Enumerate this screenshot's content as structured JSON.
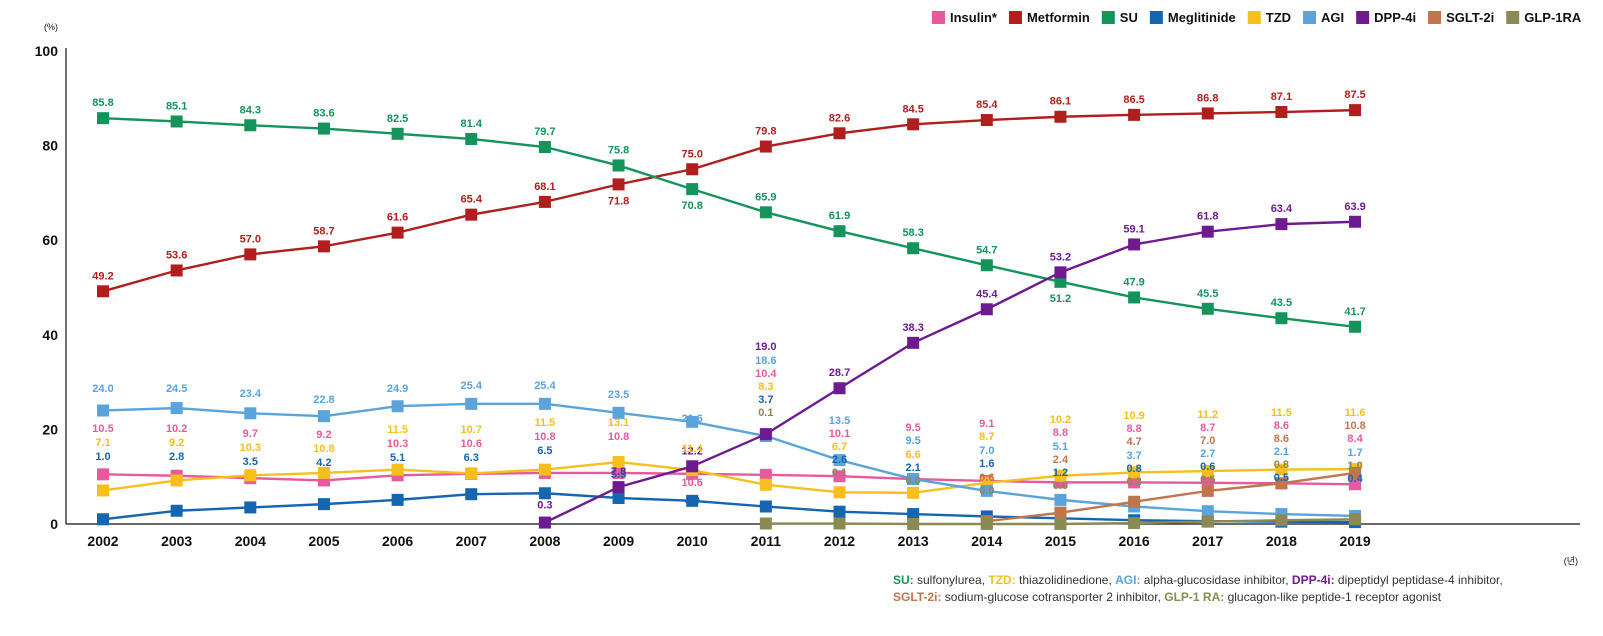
{
  "chart_data": {
    "type": "line",
    "title": "",
    "ylabel": "(%)",
    "xlabel": "(년)",
    "ylim": [
      0,
      100
    ],
    "yticks": [
      "0",
      "20",
      "40",
      "60",
      "80",
      "100"
    ],
    "categories": [
      "2002",
      "2003",
      "2004",
      "2005",
      "2006",
      "2007",
      "2008",
      "2009",
      "2010",
      "2011",
      "2012",
      "2013",
      "2014",
      "2015",
      "2016",
      "2017",
      "2018",
      "2019"
    ],
    "x": [
      2002,
      2003,
      2004,
      2005,
      2006,
      2007,
      2008,
      2009,
      2010,
      2011,
      2012,
      2013,
      2014,
      2015,
      2016,
      2017,
      2018,
      2019
    ],
    "legend_position": "top-right",
    "series": [
      {
        "name": "Insulin*",
        "color": "#e85a9e",
        "values": [
          10.5,
          10.2,
          9.7,
          9.2,
          10.3,
          10.6,
          10.8,
          10.8,
          10.6,
          10.4,
          10.1,
          9.5,
          9.1,
          8.8,
          8.8,
          8.7,
          8.6,
          8.4
        ],
        "labels": [
          "10.5",
          "10.2",
          "9.7",
          "9.2",
          "10.3",
          "10.6",
          "10.8",
          "10.8",
          "10.6",
          "10.4",
          "10.1",
          "9.5",
          "9.1",
          "8.8",
          "8.8",
          "8.7",
          "8.6",
          "8.4"
        ]
      },
      {
        "name": "Metformin",
        "color": "#b01e1e",
        "values": [
          49.2,
          53.6,
          57.0,
          58.7,
          61.6,
          65.4,
          68.1,
          71.8,
          75.0,
          79.8,
          82.6,
          84.5,
          85.4,
          86.1,
          86.5,
          86.8,
          87.1,
          87.5
        ],
        "labels": [
          "49.2",
          "53.6",
          "57.0",
          "58.7",
          "61.6",
          "65.4",
          "68.1",
          "71.8",
          "75.0",
          "79.8",
          "82.6",
          "84.5",
          "85.4",
          "86.1",
          "86.5",
          "86.8",
          "87.1",
          "87.5"
        ]
      },
      {
        "name": "SU",
        "color": "#14935a",
        "values": [
          85.8,
          85.1,
          84.3,
          83.6,
          82.5,
          81.4,
          79.7,
          75.8,
          70.8,
          65.9,
          61.9,
          58.3,
          54.7,
          51.2,
          47.9,
          45.5,
          43.5,
          41.7
        ],
        "labels": [
          "85.8",
          "85.1",
          "84.3",
          "83.6",
          "82.5",
          "81.4",
          "79.7",
          "75.8",
          "70.8",
          "65.9",
          "61.9",
          "58.3",
          "54.7",
          "51.2",
          "47.9",
          "45.5",
          "43.5",
          "41.7"
        ]
      },
      {
        "name": "Meglitinide",
        "color": "#1565b0",
        "values": [
          1.0,
          2.8,
          3.5,
          4.2,
          5.1,
          6.3,
          6.5,
          5.5,
          4.9,
          3.7,
          2.6,
          2.1,
          1.6,
          1.2,
          0.8,
          0.6,
          0.5,
          0.4
        ],
        "labels": [
          "1.0",
          "2.8",
          "3.5",
          "4.2",
          "5.1",
          "6.3",
          "6.5",
          "5.5",
          "4.9",
          "3.7",
          "2.6",
          "2.1",
          "1.6",
          "1.2",
          "0.8",
          "0.6",
          "0.5",
          "0.4"
        ]
      },
      {
        "name": "TZD",
        "color": "#f6bf1c",
        "values": [
          7.1,
          9.2,
          10.3,
          10.8,
          11.5,
          10.7,
          11.5,
          13.1,
          11.4,
          8.3,
          6.7,
          6.6,
          8.7,
          10.2,
          10.9,
          11.2,
          11.5,
          11.6
        ],
        "labels": [
          "7.1",
          "9.2",
          "10.3",
          "10.8",
          "11.5",
          "10.7",
          "11.5",
          "13.1",
          "11.4",
          "8.3",
          "6.7",
          "6.6",
          "8.7",
          "10.2",
          "10.9",
          "11.2",
          "11.5",
          "11.6"
        ]
      },
      {
        "name": "AGI",
        "color": "#5aa3db",
        "values": [
          24.0,
          24.5,
          23.4,
          22.8,
          24.9,
          25.4,
          25.4,
          23.5,
          21.6,
          18.6,
          13.5,
          9.5,
          7.0,
          5.1,
          3.7,
          2.7,
          2.1,
          1.7
        ],
        "labels": [
          "24.0",
          "24.5",
          "23.4",
          "22.8",
          "24.9",
          "25.4",
          "25.4",
          "23.5",
          "21.6",
          "18.6",
          "13.5",
          "9.5",
          "7.0",
          "5.1",
          "3.7",
          "2.7",
          "2.1",
          "1.7"
        ]
      },
      {
        "name": "DPP-4i",
        "color": "#6d1b8f",
        "values": [
          null,
          null,
          null,
          null,
          null,
          null,
          0.3,
          7.8,
          12.2,
          19.0,
          28.7,
          38.3,
          45.4,
          53.2,
          59.1,
          61.8,
          63.4,
          63.9
        ],
        "labels": [
          "",
          "",
          "",
          "",
          "",
          "",
          "0.3",
          "7.8",
          "12.2",
          "19.0",
          "28.7",
          "38.3",
          "45.4",
          "53.2",
          "59.1",
          "61.8",
          "63.4",
          "63.9"
        ]
      },
      {
        "name": "SGLT-2i",
        "color": "#c0754d",
        "values": [
          null,
          null,
          null,
          null,
          null,
          null,
          null,
          null,
          null,
          null,
          null,
          null,
          0.6,
          2.4,
          4.7,
          7.0,
          8.6,
          10.8
        ],
        "labels": [
          "",
          "",
          "",
          "",
          "",
          "",
          "",
          "",
          "",
          "",
          "",
          "",
          "0.6",
          "2.4",
          "4.7",
          "7.0",
          "8.6",
          "10.8"
        ]
      },
      {
        "name": "GLP-1RA",
        "color": "#8a8a52",
        "values": [
          null,
          null,
          null,
          null,
          null,
          null,
          null,
          null,
          null,
          0.1,
          0.1,
          0.0,
          0.0,
          0.0,
          0.2,
          0.5,
          0.8,
          1.0
        ],
        "labels": [
          "",
          "",
          "",
          "",
          "",
          "",
          "",
          "",
          "",
          "0.1",
          "0.1",
          "0.0",
          "0.0",
          "0.0",
          "0.2",
          "0.5",
          "0.8",
          "1.0"
        ]
      }
    ],
    "footnote": [
      [
        {
          "key": "SU:",
          "color": "#14935a",
          "text": " sulfonylurea, "
        },
        {
          "key": "TZD:",
          "color": "#f6bf1c",
          "text": " thiazolidinedione, "
        },
        {
          "key": "AGI:",
          "color": "#5aa3db",
          "text": " alpha-glucosidase inhibitor, "
        },
        {
          "key": "DPP-4i:",
          "color": "#6d1b8f",
          "text": " dipeptidyl peptidase-4 inhibitor,"
        }
      ],
      [
        {
          "key": "SGLT-2i:",
          "color": "#c0754d",
          "text": " sodium-glucose cotransporter 2 inhibitor, "
        },
        {
          "key": "GLP-1 RA:",
          "color": "#8a8a52",
          "text": " glucagon-like peptide-1 receptor agonist"
        }
      ]
    ]
  }
}
